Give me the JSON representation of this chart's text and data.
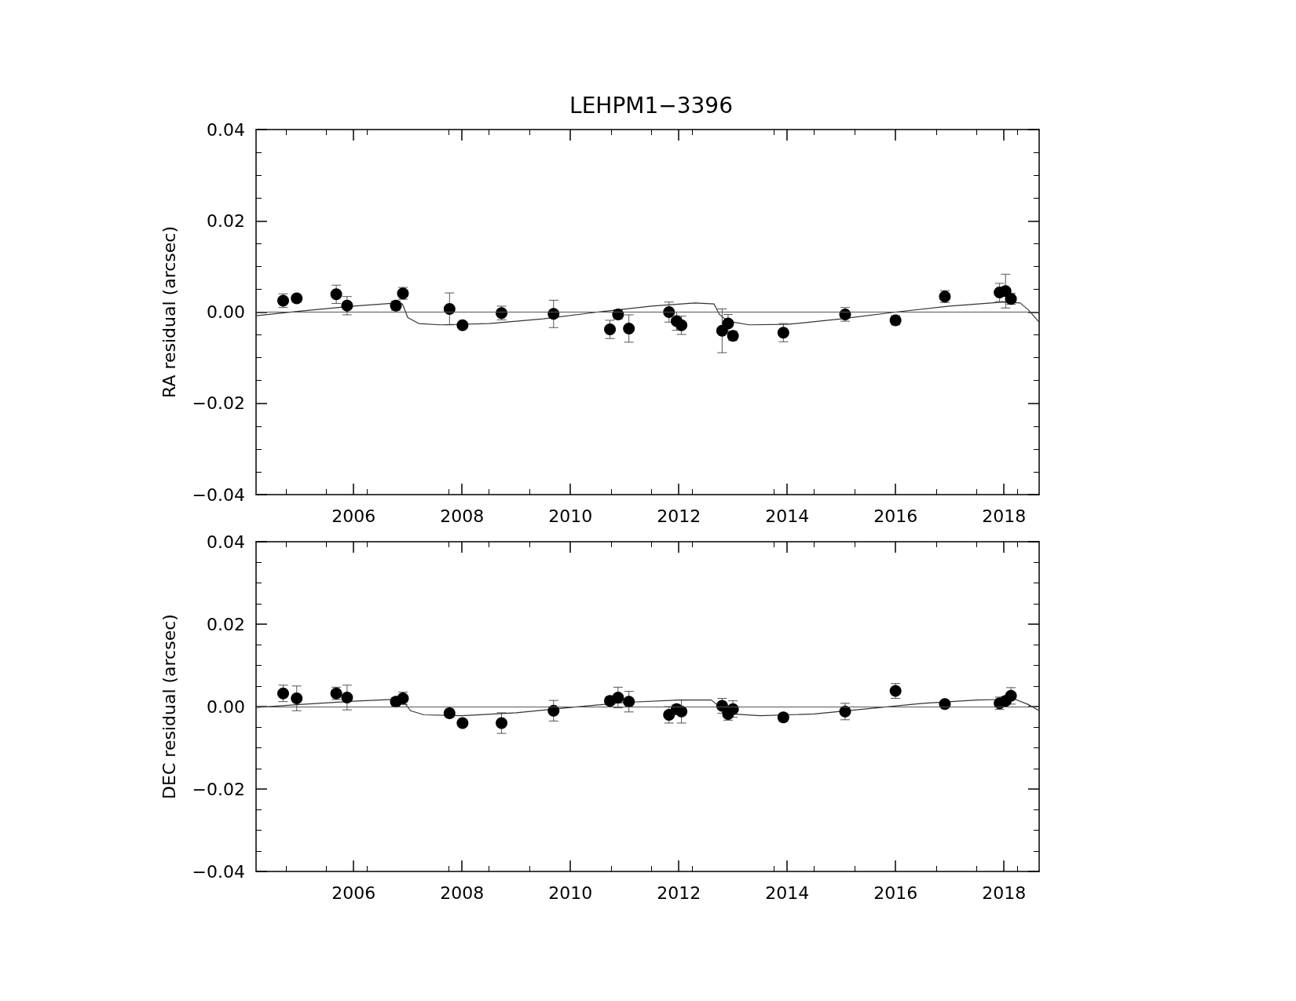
{
  "chart_data": [
    {
      "type": "scatter",
      "title": "LEHPM1−3396",
      "ylabel": "RA residual (arcsec)",
      "xlim": [
        2004.2,
        2018.65
      ],
      "xticks": [
        2006,
        2008,
        2010,
        2012,
        2014,
        2016,
        2018
      ],
      "ylim": [
        -0.04,
        0.04
      ],
      "yticks": [
        {
          "value": -0.04,
          "label": "−0.04"
        },
        {
          "value": -0.02,
          "label": "−0.02"
        },
        {
          "value": 0,
          "label": "0.00"
        },
        {
          "value": 0.02,
          "label": "0.02"
        },
        {
          "value": 0.04,
          "label": "0.04"
        }
      ],
      "grid": false,
      "marker": "circle",
      "ref_lines": [
        {
          "axis": "y",
          "value": 0
        }
      ],
      "series": [
        {
          "color": "#000000",
          "x": [
            2004.7,
            2004.95,
            2005.68,
            2005.88,
            2006.78,
            2006.91,
            2007.77,
            2008.01,
            2008.73,
            2009.69,
            2010.73,
            2010.88,
            2011.08,
            2011.82,
            2011.96,
            2012.05,
            2012.8,
            2012.91,
            2013.0,
            2013.93,
            2015.07,
            2016.0,
            2016.91,
            2017.92,
            2018.03,
            2018.13
          ],
          "values": [
            0.0025,
            0.003,
            0.0039,
            0.0014,
            0.0014,
            0.0041,
            0.0007,
            -0.0029,
            -0.0002,
            -0.0004,
            -0.0038,
            -0.0005,
            -0.0036,
            0.0,
            -0.002,
            -0.0029,
            -0.0041,
            -0.0025,
            -0.0052,
            -0.0045,
            -0.0005,
            -0.0018,
            0.0034,
            0.0043,
            0.0046,
            0.0029
          ],
          "errors": [
            0.0015,
            0.0008,
            0.002,
            0.002,
            0.001,
            0.0013,
            0.0035,
            null,
            0.0015,
            0.003,
            0.002,
            0.001,
            0.003,
            0.0022,
            0.002,
            0.002,
            0.0048,
            0.002,
            0.001,
            0.002,
            0.0015,
            0.001,
            0.0013,
            0.002,
            0.0037,
            0.0012
          ]
        },
        {
          "type": "line",
          "color": "#333333",
          "marker": "none",
          "x": [
            2004.2,
            2005.0,
            2006.0,
            2006.8,
            2006.9,
            2007.0,
            2007.2,
            2007.6,
            2008.5,
            2009.5,
            2010.5,
            2011.5,
            2012.3,
            2012.65,
            2012.75,
            2012.9,
            2013.3,
            2014.0,
            2015.0,
            2016.0,
            2017.0,
            2018.0,
            2018.3,
            2018.45,
            2018.65
          ],
          "values": [
            -0.0008,
            0.0002,
            0.0013,
            0.002,
            0.0018,
            -0.0012,
            -0.0025,
            -0.0028,
            -0.0025,
            -0.0015,
            0.0,
            0.0013,
            0.002,
            0.0018,
            -0.0005,
            -0.002,
            -0.0028,
            -0.0027,
            -0.0015,
            0.0,
            0.0013,
            0.0022,
            0.002,
            0.0005,
            -0.0022
          ]
        }
      ]
    },
    {
      "type": "scatter",
      "ylabel": "DEC residual (arcsec)",
      "xlim": [
        2004.2,
        2018.65
      ],
      "xticks": [
        2006,
        2008,
        2010,
        2012,
        2014,
        2016,
        2018
      ],
      "ylim": [
        -0.04,
        0.04
      ],
      "yticks": [
        {
          "value": -0.04,
          "label": "−0.04"
        },
        {
          "value": -0.02,
          "label": "−0.02"
        },
        {
          "value": 0,
          "label": "0.00"
        },
        {
          "value": 0.02,
          "label": "0.02"
        },
        {
          "value": 0.04,
          "label": "0.04"
        }
      ],
      "grid": false,
      "marker": "circle",
      "ref_lines": [
        {
          "axis": "y",
          "value": 0
        }
      ],
      "series": [
        {
          "color": "#000000",
          "x": [
            2004.7,
            2004.95,
            2005.68,
            2005.88,
            2006.78,
            2006.91,
            2007.77,
            2008.01,
            2008.73,
            2009.69,
            2010.73,
            2010.88,
            2011.08,
            2011.82,
            2011.96,
            2012.05,
            2012.8,
            2012.91,
            2013.0,
            2013.93,
            2015.07,
            2016.0,
            2016.91,
            2017.92,
            2018.03,
            2018.13
          ],
          "values": [
            0.0032,
            0.002,
            0.0032,
            0.0022,
            0.0012,
            0.002,
            -0.0016,
            -0.004,
            -0.004,
            -0.001,
            0.0014,
            0.0022,
            0.0012,
            -0.002,
            -0.0006,
            -0.0012,
            0.0002,
            -0.0018,
            -0.0006,
            -0.0026,
            -0.0012,
            0.0038,
            0.0006,
            0.0008,
            0.0014,
            0.0026
          ],
          "errors": [
            0.002,
            0.003,
            0.0015,
            0.003,
            0.001,
            0.0015,
            0.001,
            0.0008,
            0.0025,
            0.0025,
            0.001,
            0.0025,
            0.0025,
            0.002,
            0.001,
            0.0028,
            0.0018,
            0.0015,
            0.002,
            0.001,
            0.002,
            0.0018,
            0.0008,
            0.0015,
            0.001,
            0.002
          ]
        },
        {
          "type": "line",
          "color": "#333333",
          "marker": "none",
          "x": [
            2004.2,
            2005.0,
            2006.0,
            2006.8,
            2006.9,
            2007.05,
            2007.3,
            2008.0,
            2009.0,
            2010.0,
            2011.0,
            2012.0,
            2012.6,
            2012.8,
            2013.0,
            2013.5,
            2014.5,
            2015.5,
            2016.5,
            2017.5,
            2018.2,
            2018.45,
            2018.65
          ],
          "values": [
            -0.0002,
            0.0005,
            0.0013,
            0.0018,
            0.0016,
            -0.001,
            -0.002,
            -0.0022,
            -0.0015,
            -0.0002,
            0.001,
            0.0016,
            0.0016,
            -0.0005,
            -0.0018,
            -0.0022,
            -0.0018,
            -0.0005,
            0.0008,
            0.0016,
            0.0018,
            0.0005,
            -0.001
          ]
        }
      ]
    }
  ]
}
